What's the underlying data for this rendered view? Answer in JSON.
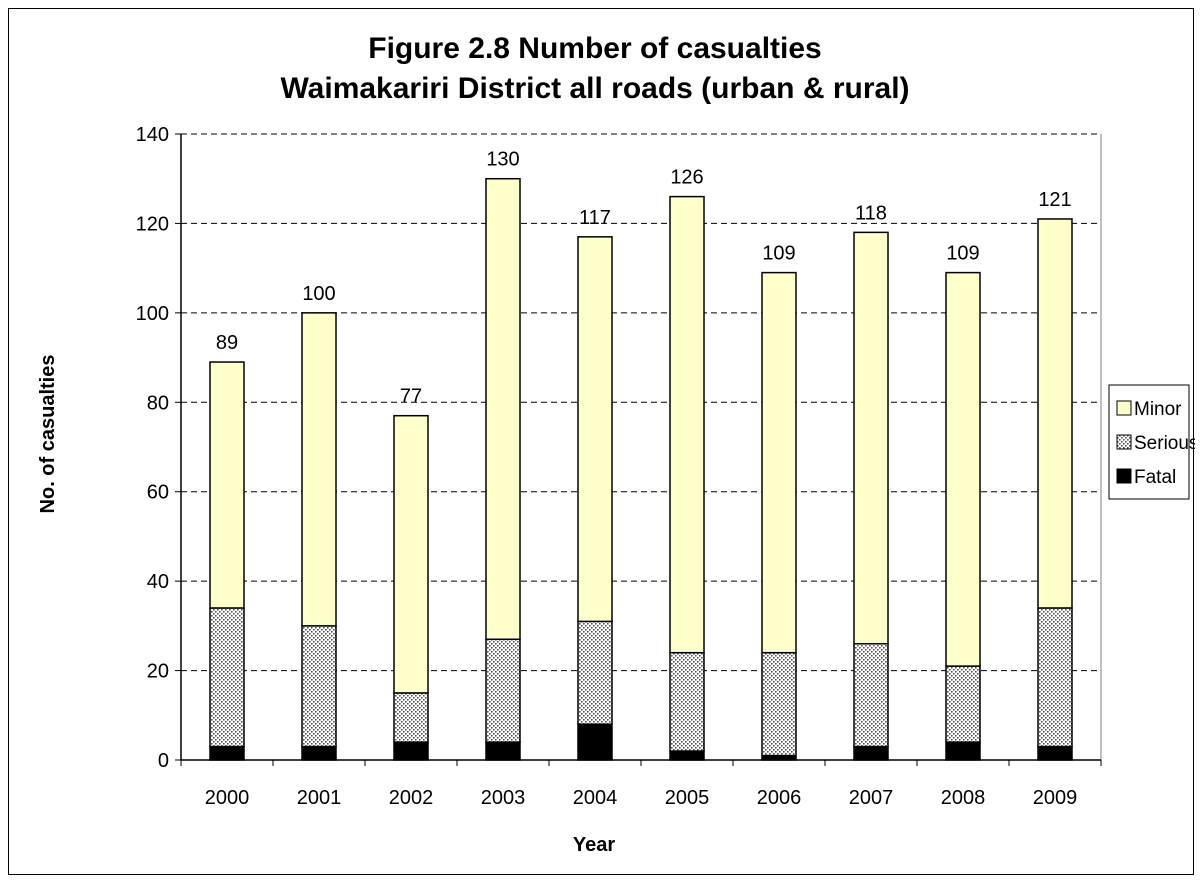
{
  "chart_data": {
    "type": "bar",
    "stacked": true,
    "title": "Figure 2.8 Number of casualties",
    "subtitle": "Waimakariri District all roads (urban & rural)",
    "xlabel": "Year",
    "ylabel": "No. of casualties",
    "ylim": [
      0,
      140
    ],
    "yticks": [
      0,
      20,
      40,
      60,
      80,
      100,
      120,
      140
    ],
    "grid": "horizontal-dashed",
    "legend_position": "right",
    "categories": [
      "2000",
      "2001",
      "2002",
      "2003",
      "2004",
      "2005",
      "2006",
      "2007",
      "2008",
      "2009"
    ],
    "series": [
      {
        "name": "Fatal",
        "fill": "#000000",
        "pattern": "solid",
        "values": [
          3,
          3,
          4,
          4,
          8,
          2,
          1,
          3,
          4,
          3
        ]
      },
      {
        "name": "Serious",
        "fill": "#c8c8c8",
        "pattern": "dotted",
        "values": [
          31,
          27,
          11,
          23,
          23,
          22,
          23,
          23,
          17,
          31
        ]
      },
      {
        "name": "Minor",
        "fill": "#ffffcc",
        "pattern": "solid",
        "values": [
          55,
          70,
          62,
          103,
          86,
          102,
          85,
          92,
          88,
          87
        ]
      }
    ],
    "legend_order": [
      "Minor",
      "Serious",
      "Fatal"
    ],
    "totals": [
      "89",
      "100",
      "77",
      "130",
      "117",
      "126",
      "109",
      "118",
      "109",
      "121"
    ]
  }
}
